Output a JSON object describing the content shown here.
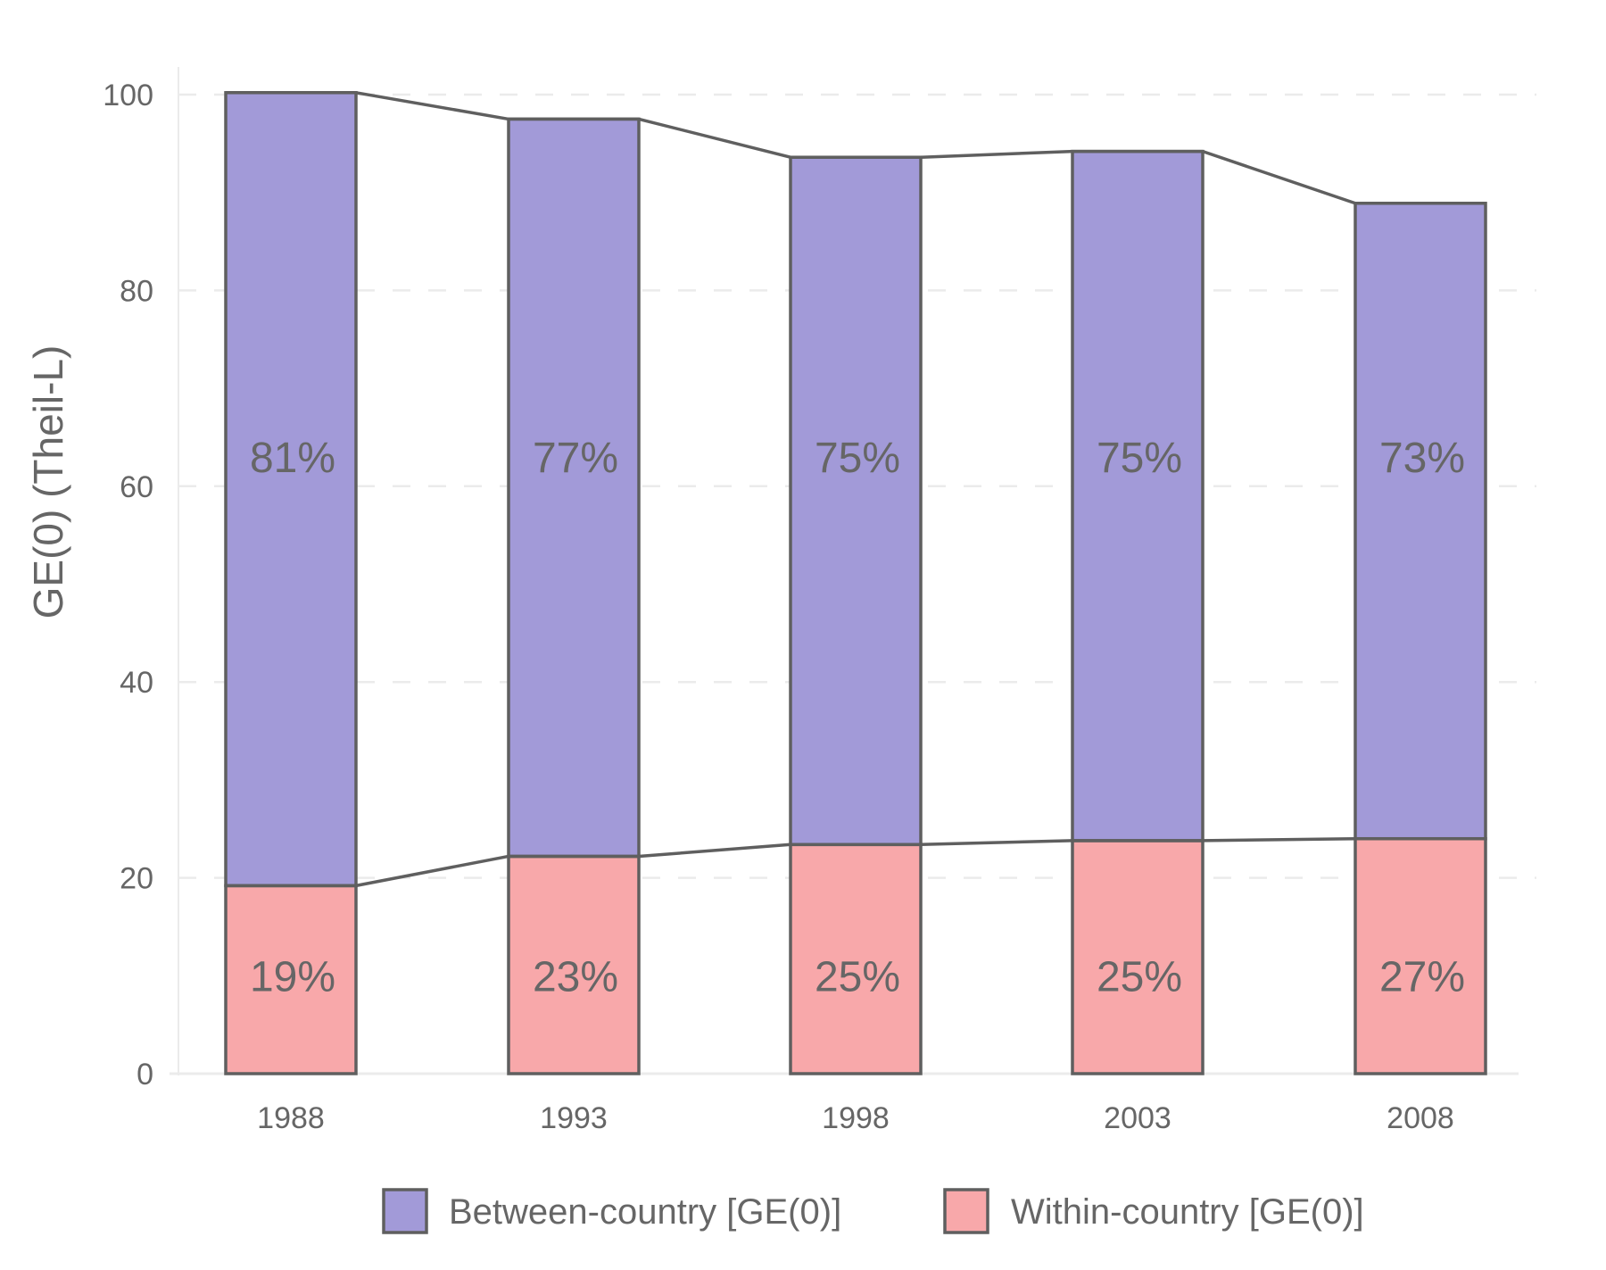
{
  "chart_data": {
    "type": "bar",
    "stacked": true,
    "title": "",
    "xlabel": "",
    "ylabel": "GE(0) (Theil-L)",
    "ylim": [
      0,
      100
    ],
    "yticks": [
      0,
      20,
      40,
      60,
      80,
      100
    ],
    "grid": "horizontal dashed",
    "legend_position": "bottom",
    "categories": [
      "1988",
      "1993",
      "1998",
      "2003",
      "2008"
    ],
    "series": [
      {
        "name": "Within-country [GE(0)]",
        "color": "#f8a8aa",
        "values": [
          19.2,
          22.2,
          23.4,
          23.8,
          24.0
        ],
        "labels": [
          "19%",
          "23%",
          "25%",
          "25%",
          "27%"
        ]
      },
      {
        "name": "Between-country [GE(0)]",
        "color": "#a29ad8",
        "values": [
          81.0,
          75.3,
          70.2,
          70.4,
          64.9
        ],
        "labels": [
          "81%",
          "77%",
          "75%",
          "75%",
          "73%"
        ]
      }
    ],
    "label_positions": {
      "within": 10,
      "between": 63
    },
    "connector_lines": true,
    "outline_color": "#5f5f5f",
    "grid_color": "#ebebeb",
    "text_color": "#666666"
  }
}
